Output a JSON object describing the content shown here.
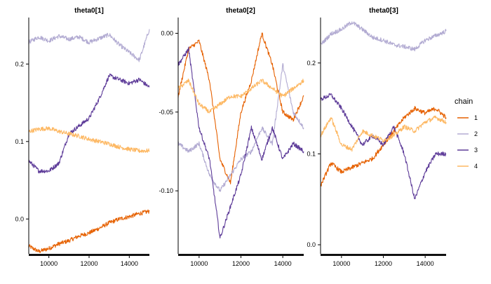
{
  "chart_data": {
    "type": "line",
    "legend": {
      "title": "chain",
      "placement": "right",
      "items": [
        {
          "label": "1",
          "color": "#e66101"
        },
        {
          "label": "2",
          "color": "#b2abd2"
        },
        {
          "label": "3",
          "color": "#5e3c99"
        },
        {
          "label": "4",
          "color": "#fdb863"
        }
      ]
    },
    "panels": [
      {
        "title": "theta0[1]",
        "xlim": [
          9000,
          15000
        ],
        "ylim": [
          -0.045,
          0.26
        ],
        "xticks": [
          10000,
          12000,
          14000
        ],
        "xtick_labels": [
          "10000",
          "12000",
          "14000"
        ],
        "yticks": [
          0.0,
          0.1,
          0.2
        ],
        "ytick_labels": [
          "0.0",
          "0.1",
          "0.2"
        ],
        "series": [
          {
            "chain": "1",
            "x": [
              9000,
              9500,
              10000,
              10500,
              11000,
              11500,
              12000,
              12500,
              13000,
              13500,
              14000,
              14500,
              15000
            ],
            "y": [
              -0.035,
              -0.042,
              -0.038,
              -0.032,
              -0.028,
              -0.022,
              -0.018,
              -0.012,
              -0.005,
              0.0,
              0.003,
              0.007,
              0.01
            ]
          },
          {
            "chain": "2",
            "x": [
              9000,
              9500,
              10000,
              10500,
              11000,
              11500,
              12000,
              12500,
              13000,
              13500,
              14000,
              14500,
              15000
            ],
            "y": [
              0.228,
              0.235,
              0.23,
              0.236,
              0.232,
              0.235,
              0.228,
              0.233,
              0.238,
              0.225,
              0.215,
              0.205,
              0.245
            ]
          },
          {
            "chain": "3",
            "x": [
              9000,
              9500,
              10000,
              10500,
              11000,
              11500,
              12000,
              12500,
              13000,
              13500,
              14000,
              14500,
              15000
            ],
            "y": [
              0.075,
              0.062,
              0.062,
              0.072,
              0.11,
              0.12,
              0.13,
              0.155,
              0.185,
              0.18,
              0.175,
              0.18,
              0.17
            ]
          },
          {
            "chain": "4",
            "x": [
              9000,
              9500,
              10000,
              10500,
              11000,
              11500,
              12000,
              12500,
              13000,
              13500,
              14000,
              14500,
              15000
            ],
            "y": [
              0.113,
              0.116,
              0.117,
              0.113,
              0.11,
              0.107,
              0.103,
              0.1,
              0.097,
              0.093,
              0.09,
              0.088,
              0.088
            ]
          }
        ]
      },
      {
        "title": "theta0[2]",
        "xlim": [
          9000,
          15000
        ],
        "ylim": [
          -0.14,
          0.01
        ],
        "xticks": [
          10000,
          12000,
          14000
        ],
        "xtick_labels": [
          "10000",
          "12000",
          "14000"
        ],
        "yticks": [
          0.0,
          -0.05,
          -0.1
        ],
        "ytick_labels": [
          "0.00",
          "-0.05",
          "-0.10"
        ],
        "series": [
          {
            "chain": "1",
            "x": [
              9000,
              9500,
              10000,
              10500,
              11000,
              11500,
              12000,
              12500,
              13000,
              13500,
              14000,
              14500,
              15000
            ],
            "y": [
              -0.04,
              -0.01,
              -0.005,
              -0.03,
              -0.08,
              -0.095,
              -0.05,
              -0.03,
              0.0,
              -0.02,
              -0.05,
              -0.055,
              -0.04
            ]
          },
          {
            "chain": "2",
            "x": [
              9000,
              9500,
              10000,
              10500,
              11000,
              11500,
              12000,
              12500,
              13000,
              13500,
              14000,
              14500,
              15000
            ],
            "y": [
              -0.07,
              -0.075,
              -0.07,
              -0.09,
              -0.1,
              -0.09,
              -0.08,
              -0.075,
              -0.06,
              -0.07,
              -0.02,
              -0.05,
              -0.06
            ]
          },
          {
            "chain": "3",
            "x": [
              9000,
              9500,
              10000,
              10500,
              11000,
              11500,
              12000,
              12500,
              13000,
              13500,
              14000,
              14500,
              15000
            ],
            "y": [
              -0.02,
              -0.01,
              -0.06,
              -0.08,
              -0.13,
              -0.11,
              -0.09,
              -0.06,
              -0.08,
              -0.06,
              -0.08,
              -0.07,
              -0.075
            ]
          },
          {
            "chain": "4",
            "x": [
              9000,
              9500,
              10000,
              10500,
              11000,
              11500,
              12000,
              12500,
              13000,
              13500,
              14000,
              14500,
              15000
            ],
            "y": [
              -0.035,
              -0.03,
              -0.045,
              -0.05,
              -0.045,
              -0.04,
              -0.04,
              -0.035,
              -0.03,
              -0.035,
              -0.04,
              -0.035,
              -0.03
            ]
          }
        ]
      },
      {
        "title": "theta0[3]",
        "xlim": [
          9000,
          15000
        ],
        "ylim": [
          -0.01,
          0.25
        ],
        "xticks": [
          10000,
          12000,
          14000
        ],
        "xtick_labels": [
          "10000",
          "12000",
          "14000"
        ],
        "yticks": [
          0.0,
          0.1,
          0.2
        ],
        "ytick_labels": [
          "0.0",
          "0.1",
          "0.2"
        ],
        "series": [
          {
            "chain": "1",
            "x": [
              9000,
              9500,
              10000,
              10500,
              11000,
              11500,
              12000,
              12500,
              13000,
              13500,
              14000,
              14500,
              15000
            ],
            "y": [
              0.065,
              0.09,
              0.08,
              0.085,
              0.09,
              0.095,
              0.11,
              0.125,
              0.14,
              0.15,
              0.145,
              0.15,
              0.14
            ]
          },
          {
            "chain": "2",
            "x": [
              9000,
              9500,
              10000,
              10500,
              11000,
              11500,
              12000,
              12500,
              13000,
              13500,
              14000,
              14500,
              15000
            ],
            "y": [
              0.22,
              0.232,
              0.237,
              0.245,
              0.237,
              0.228,
              0.225,
              0.22,
              0.218,
              0.215,
              0.225,
              0.23,
              0.235
            ]
          },
          {
            "chain": "3",
            "x": [
              9000,
              9500,
              10000,
              10500,
              11000,
              11500,
              12000,
              12500,
              13000,
              13500,
              14000,
              14500,
              15000
            ],
            "y": [
              0.16,
              0.165,
              0.15,
              0.13,
              0.11,
              0.12,
              0.11,
              0.13,
              0.1,
              0.05,
              0.08,
              0.1,
              0.1
            ]
          },
          {
            "chain": "4",
            "x": [
              9000,
              9500,
              10000,
              10500,
              11000,
              11500,
              12000,
              12500,
              13000,
              13500,
              14000,
              14500,
              15000
            ],
            "y": [
              0.12,
              0.14,
              0.11,
              0.105,
              0.125,
              0.12,
              0.115,
              0.12,
              0.13,
              0.125,
              0.135,
              0.14,
              0.135
            ]
          }
        ]
      }
    ]
  }
}
